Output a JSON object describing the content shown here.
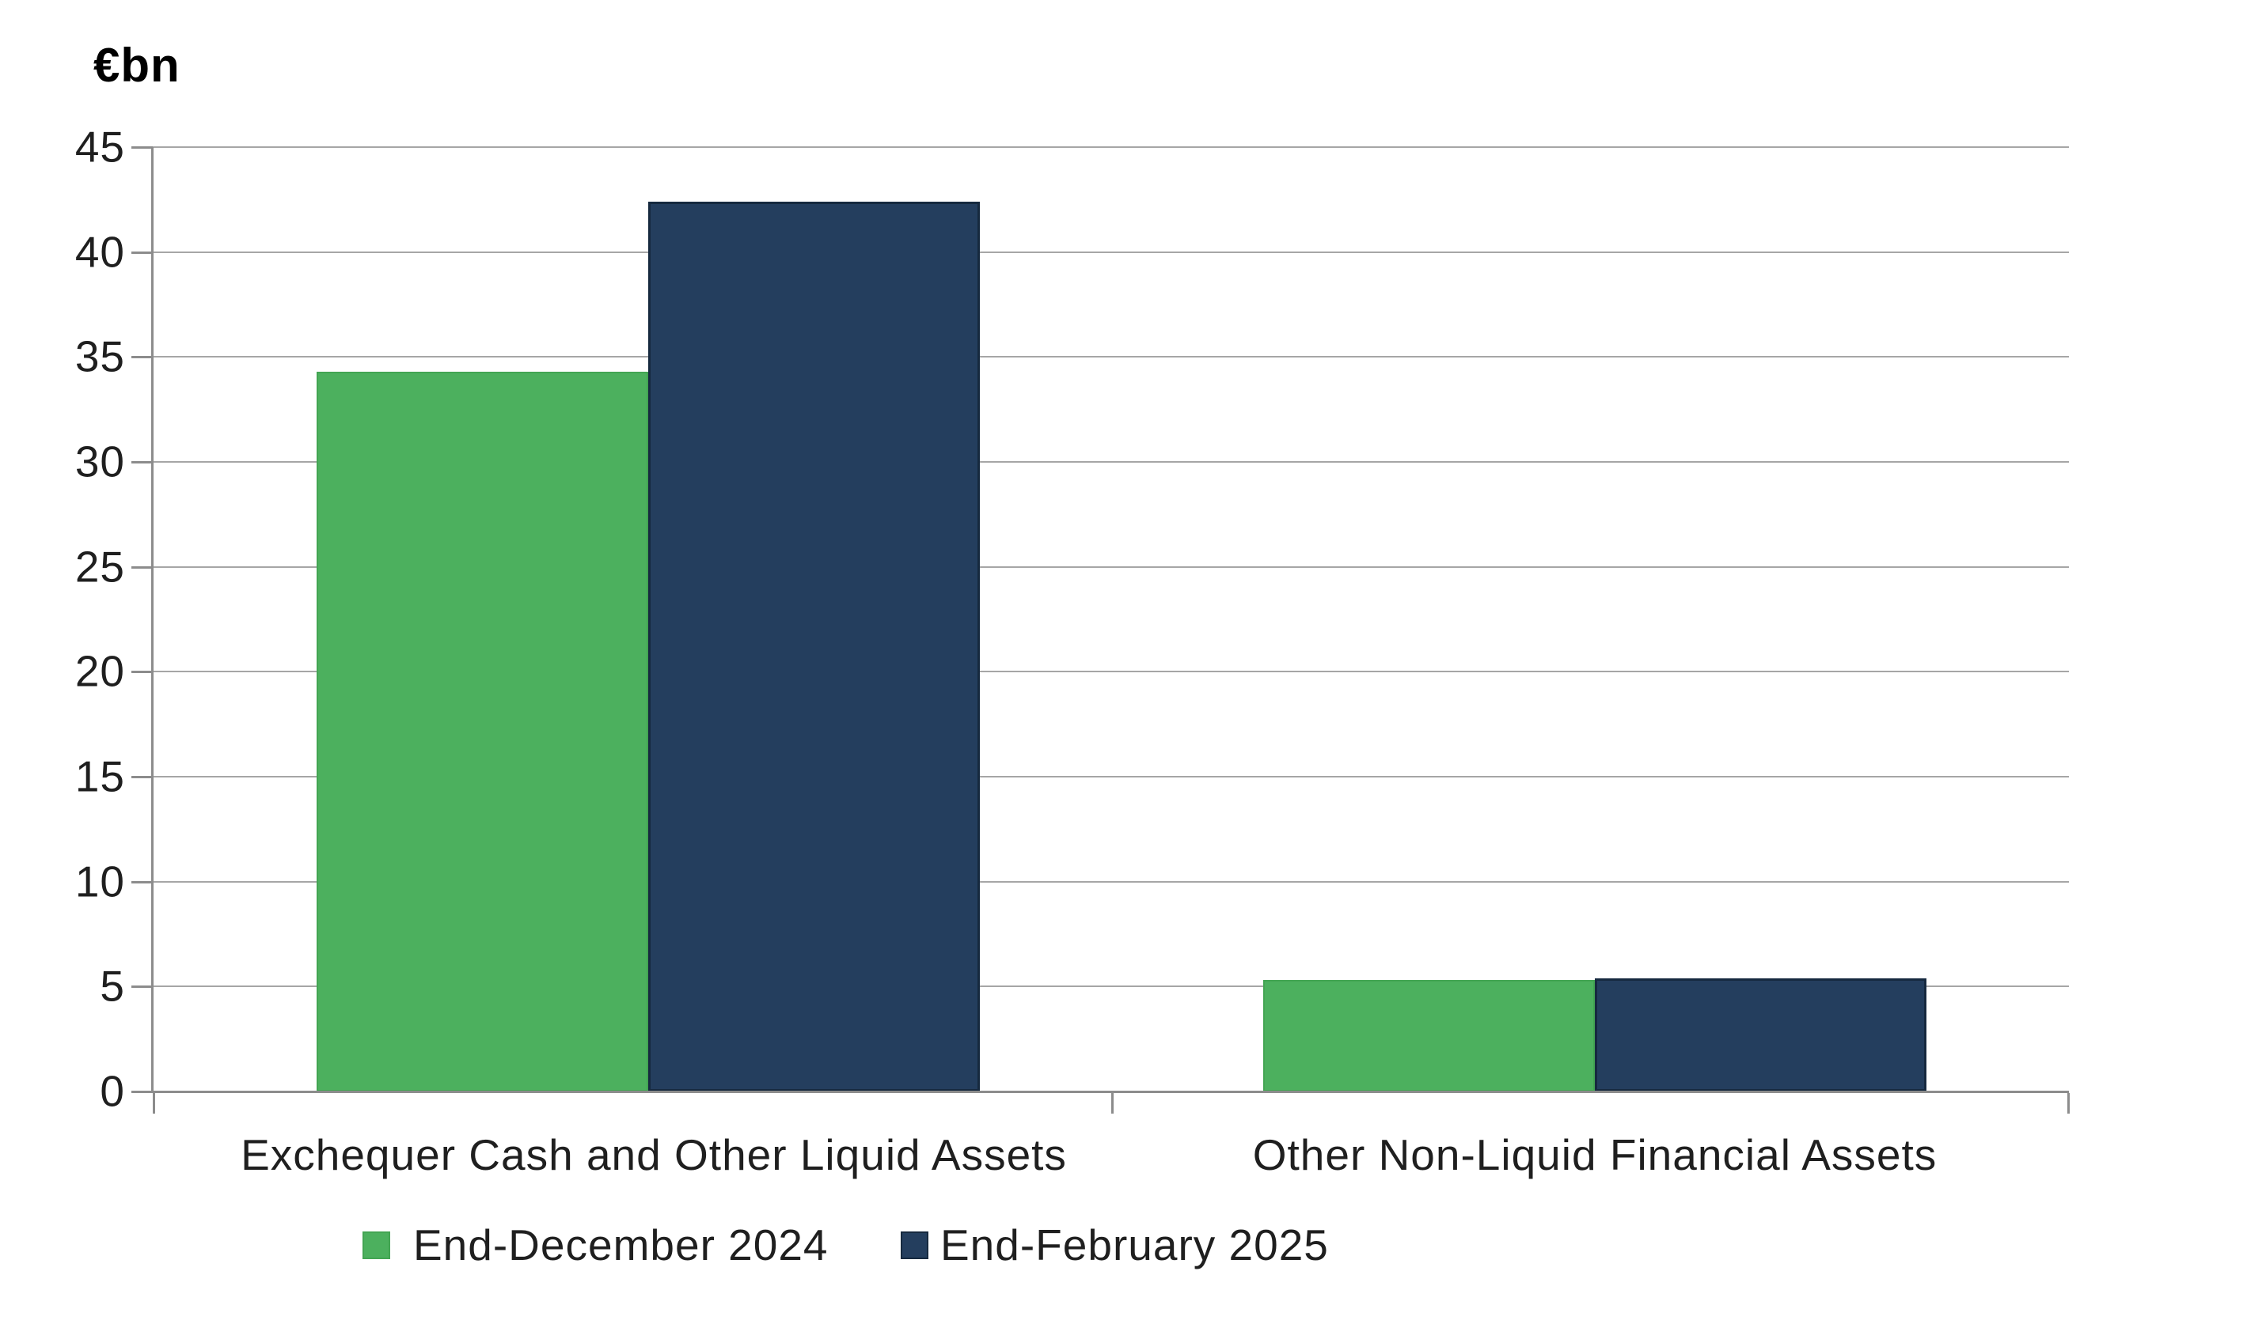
{
  "chart_data": {
    "type": "bar",
    "title": "",
    "unit_label": "€bn",
    "ylabel": "€bn",
    "xlabel": "",
    "categories": [
      "Exchequer Cash and Other Liquid Assets",
      "Other Non-Liquid Financial Assets"
    ],
    "series": [
      {
        "name": "End-December 2024",
        "values": [
          34.3,
          5.3
        ],
        "color": "#4CB05E",
        "border_color": "#43A553"
      },
      {
        "name": "End-February 2025",
        "values": [
          42.4,
          5.4
        ],
        "color": "#243E5E",
        "border_color": "#16293F"
      }
    ],
    "ylim": [
      0,
      45
    ],
    "y_ticks": [
      0,
      5,
      10,
      15,
      20,
      25,
      30,
      35,
      40,
      45
    ],
    "grid": "horizontal",
    "legend_position": "bottom-left",
    "gridline_color": "#A6A6A6",
    "axis_color": "#8C8C8C",
    "text_color": "#1F1F1F"
  }
}
